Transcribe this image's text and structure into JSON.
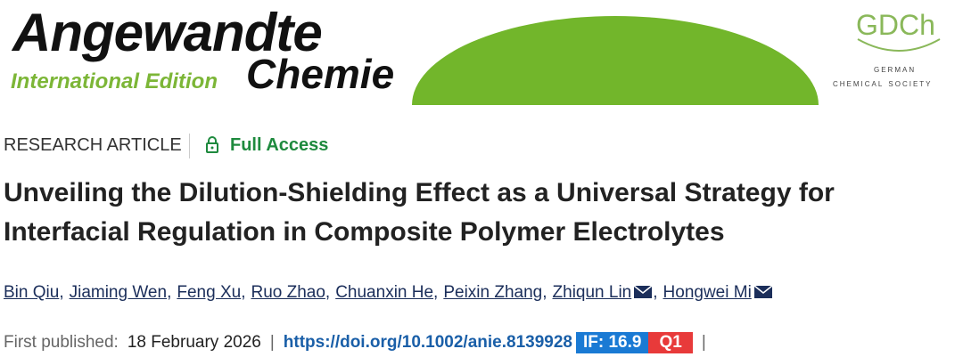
{
  "header": {
    "journal_name": "Angewandte",
    "journal_name_2": "Chemie",
    "edition": "International Edition",
    "society_logo": "GDCh",
    "society_line_1": "German",
    "society_line_2": "Chemical Society"
  },
  "article": {
    "type": "RESEARCH ARTICLE",
    "access": "Full Access",
    "title": "Unveiling the Dilution-Shielding Effect as a Universal Strategy for Interfacial Regulation in Composite Polymer Electrolytes",
    "authors": [
      "Bin Qiu",
      "Jiaming Wen",
      "Feng Xu",
      "Ruo Zhao",
      "Chuanxin He",
      "Peixin Zhang",
      "Zhiqun Lin",
      "Hongwei Mi"
    ],
    "author_separator": ",",
    "published_label": "First published:",
    "published_date": "18 February 2026",
    "separator": "|",
    "doi": "https://doi.org/10.1002/anie.8139928",
    "impact_factor": "IF: 16.9",
    "quartile": "Q1"
  }
}
